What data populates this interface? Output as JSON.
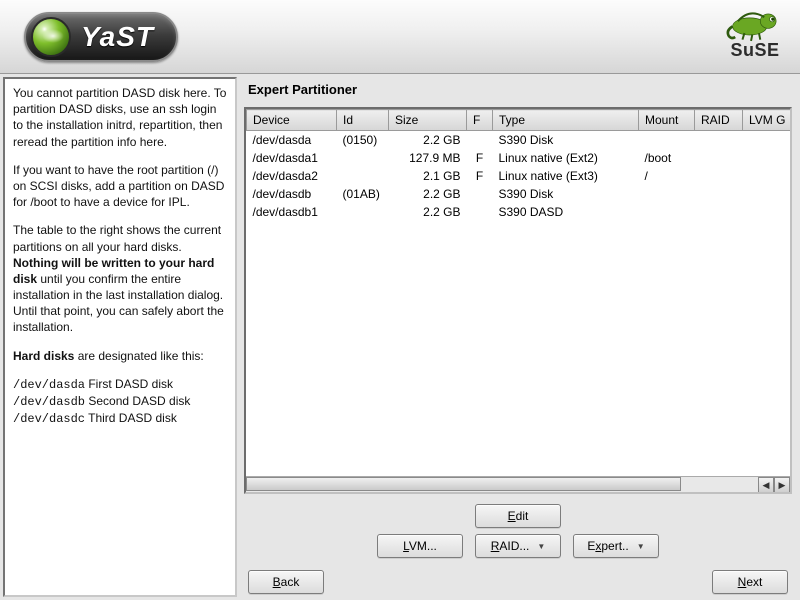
{
  "header": {
    "product": "YaST",
    "distro": "SuSE",
    "colors": {
      "ball_gradient": [
        "#ffffff",
        "#d6efb5",
        "#7fbf2b",
        "#3a6e10",
        "#1f3e07"
      ],
      "lizard": "#6aa723"
    }
  },
  "help": {
    "p1_a": "You cannot partition DASD disk here. To partition DASD disks, use an ssh login to the installation initrd, repartition, then reread the partition info here.",
    "p2_a": "If you want to have the root partition (/) on SCSI disks, add a partition on DASD for /boot to have a device for IPL.",
    "p3_a": "The table to the right shows the current partitions on all your hard disks. ",
    "p3_bold": "Nothing will be written to your hard disk",
    "p3_b": " until you confirm the entire installation in the last installation dialog. Until that point, you can safely abort the installation.",
    "p4_bold": "Hard disks",
    "p4_rest": " are designated like this:",
    "p5_d1": "/dev/dasda",
    "p5_t1": "  First DASD disk",
    "p5_d2": "/dev/dasdb",
    "p5_t2": "  Second DASD disk ",
    "p5_d3": "/dev/dasdc",
    "p5_t3": "  Third DASD disk"
  },
  "page": {
    "title": "Expert Partitioner"
  },
  "table": {
    "columns": {
      "device": "Device",
      "id": "Id",
      "size": "Size",
      "f": "F",
      "type": "Type",
      "mount": "Mount",
      "raid": "RAID",
      "lvm": "LVM G"
    },
    "col_widths": {
      "device": 90,
      "id": 52,
      "size": 78,
      "f": 26,
      "type": 146,
      "mount": 56,
      "raid": 48,
      "lvm": 52
    },
    "rows": [
      {
        "device": "/dev/dasda",
        "id": "(0150)",
        "size": "2.2 GB",
        "f": "",
        "type": "S390 Disk",
        "mount": ""
      },
      {
        "device": "/dev/dasda1",
        "id": "",
        "size": "127.9 MB",
        "f": "F",
        "type": "Linux native (Ext2)",
        "mount": "/boot"
      },
      {
        "device": "/dev/dasda2",
        "id": "",
        "size": "2.1 GB",
        "f": "F",
        "type": "Linux native (Ext3)",
        "mount": "/"
      },
      {
        "device": "/dev/dasdb",
        "id": "(01AB)",
        "size": "2.2 GB",
        "f": "",
        "type": "S390 Disk",
        "mount": ""
      },
      {
        "device": "/dev/dasdb1",
        "id": "",
        "size": "2.2 GB",
        "f": "",
        "type": "S390 DASD",
        "mount": ""
      }
    ]
  },
  "buttons": {
    "edit": "Edit",
    "lvm": "LVM...",
    "raid": "RAID...",
    "expert": "Expert..",
    "back": "Back",
    "next": "Next"
  }
}
